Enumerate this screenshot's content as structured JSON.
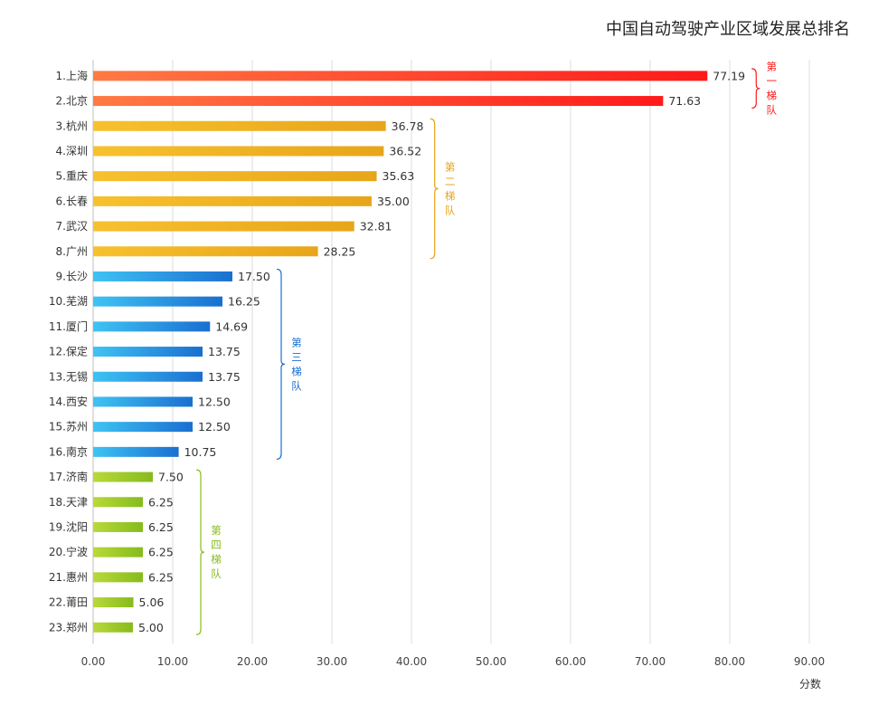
{
  "chart_data": {
    "type": "bar",
    "orientation": "horizontal",
    "title": "中国自动驾驶产业区域发展总排名",
    "xlabel": "分数",
    "ylabel": "",
    "xlim": [
      0,
      90
    ],
    "x_ticks": [
      "0.00",
      "10.00",
      "20.00",
      "30.00",
      "40.00",
      "50.00",
      "60.00",
      "70.00",
      "80.00",
      "90.00"
    ],
    "grid": true,
    "categories": [
      "1.上海",
      "2.北京",
      "3.杭州",
      "4.深圳",
      "5.重庆",
      "6.长春",
      "7.武汉",
      "8.广州",
      "9.长沙",
      "10.芜湖",
      "11.厦门",
      "12.保定",
      "13.无锡",
      "14.西安",
      "15.苏州",
      "16.南京",
      "17.济南",
      "18.天津",
      "19.沈阳",
      "20.宁波",
      "21.惠州",
      "22.莆田",
      "23.郑州"
    ],
    "values": [
      77.19,
      71.63,
      36.78,
      36.52,
      35.63,
      35.0,
      32.81,
      28.25,
      17.5,
      16.25,
      14.69,
      13.75,
      13.75,
      12.5,
      12.5,
      10.75,
      7.5,
      6.25,
      6.25,
      6.25,
      6.25,
      5.06,
      5.0
    ],
    "value_labels": [
      "77.19",
      "71.63",
      "36.78",
      "36.52",
      "35.63",
      "35.00",
      "32.81",
      "28.25",
      "17.50",
      "16.25",
      "14.69",
      "13.75",
      "13.75",
      "12.50",
      "12.50",
      "10.75",
      "7.50",
      "6.25",
      "6.25",
      "6.25",
      "6.25",
      "5.06",
      "5.00"
    ],
    "tiers": [
      {
        "label": "第一梯队",
        "start": 0,
        "end": 1,
        "color_light": "#ff7a45",
        "color_dark": "#ff1a1a"
      },
      {
        "label": "第二梯队",
        "start": 2,
        "end": 7,
        "color_light": "#f7c12e",
        "color_dark": "#e8a51a"
      },
      {
        "label": "第三梯队",
        "start": 8,
        "end": 15,
        "color_light": "#3fc3f3",
        "color_dark": "#1a6fd0"
      },
      {
        "label": "第四梯队",
        "start": 16,
        "end": 22,
        "color_light": "#b8d93a",
        "color_dark": "#86bb1c"
      }
    ]
  }
}
